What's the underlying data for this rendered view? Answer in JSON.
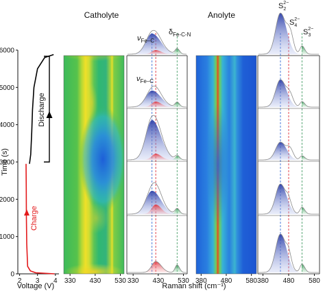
{
  "labels": {
    "catholyte": "Catholyte",
    "anolyte": "Anolyte",
    "discharge": "Discharge",
    "charge": "Charge",
    "xlabel_left": "Voltage (V)",
    "ylabel_left": "Time (s)",
    "xlabel_right": "Raman shift (cm⁻¹)",
    "nu_fec_top": "ν",
    "nu_fec_top_sub": "Fe–C",
    "delta_fecn": "δ",
    "delta_fecn_sub": "Fe-C-N",
    "nu_fec_second": "ν",
    "nu_fec_second_sub": "Fe–C",
    "s2": "S",
    "s2_sub": "2",
    "s2_sup": "2−",
    "s4": "S",
    "s4_sub": "4",
    "s4_sup": "2−",
    "s3": "S",
    "s3_sub": "3",
    "s3_sup": "2−"
  },
  "chart_data": [
    {
      "type": "line",
      "panel": "voltage-time",
      "xlabel": "Voltage (V)",
      "ylabel": "Time (s)",
      "x_ticks": [
        "2",
        "3",
        "4"
      ],
      "x_tick_values": [
        2,
        3,
        4
      ],
      "xlim": [
        1.9,
        4.2
      ],
      "y_ticks": [
        "0",
        "1000",
        "2000",
        "3000",
        "4000",
        "5000",
        "6000"
      ],
      "y_tick_values": [
        0,
        1000,
        2000,
        3000,
        4000,
        5000,
        6000
      ],
      "ylim": [
        0,
        6000
      ],
      "series": [
        {
          "name": "Charge",
          "color": "#e31a1c",
          "x": [
            3.95,
            2.9,
            2.6,
            2.45,
            2.4,
            2.38,
            2.37,
            2.36
          ],
          "y": [
            0,
            30,
            80,
            200,
            800,
            1500,
            2300,
            2950
          ]
        },
        {
          "name": "Discharge",
          "color": "#000000",
          "x": [
            2.55,
            2.62,
            2.68,
            2.72,
            2.8,
            3.0,
            3.4,
            3.9
          ],
          "y": [
            2950,
            3200,
            3800,
            4400,
            5000,
            5500,
            5800,
            5880
          ]
        }
      ]
    },
    {
      "type": "heatmap",
      "panel": "catholyte-map",
      "title": "Catholyte",
      "x_ticks": [
        "330",
        "430",
        "530"
      ],
      "x_tick_values": [
        330,
        430,
        530
      ],
      "xlim": [
        305,
        545
      ]
    },
    {
      "type": "line",
      "panel": "catholyte-spectra",
      "x_ticks": [
        "330",
        "430",
        "530"
      ],
      "x_tick_values": [
        330,
        430,
        530
      ],
      "xlim": [
        305,
        545
      ],
      "dashed_lines": [
        {
          "x": 405,
          "color": "#3a6fd8"
        },
        {
          "x": 420,
          "color": "#e0303a"
        },
        {
          "x": 505,
          "color": "#4aa06a"
        }
      ]
    },
    {
      "type": "heatmap",
      "panel": "anolyte-map",
      "title": "Anolyte",
      "x_ticks": [
        "380",
        "480",
        "580"
      ],
      "x_tick_values": [
        380,
        480,
        580
      ],
      "xlim": [
        360,
        600
      ]
    },
    {
      "type": "line",
      "panel": "anolyte-spectra",
      "x_ticks": [
        "380",
        "480",
        "580"
      ],
      "x_tick_values": [
        380,
        480,
        580
      ],
      "xlim": [
        360,
        600
      ],
      "dashed_lines": [
        {
          "x": 448,
          "color": "#3a6fd8"
        },
        {
          "x": 480,
          "color": "#e0303a"
        },
        {
          "x": 532,
          "color": "#4aa06a"
        }
      ]
    }
  ]
}
